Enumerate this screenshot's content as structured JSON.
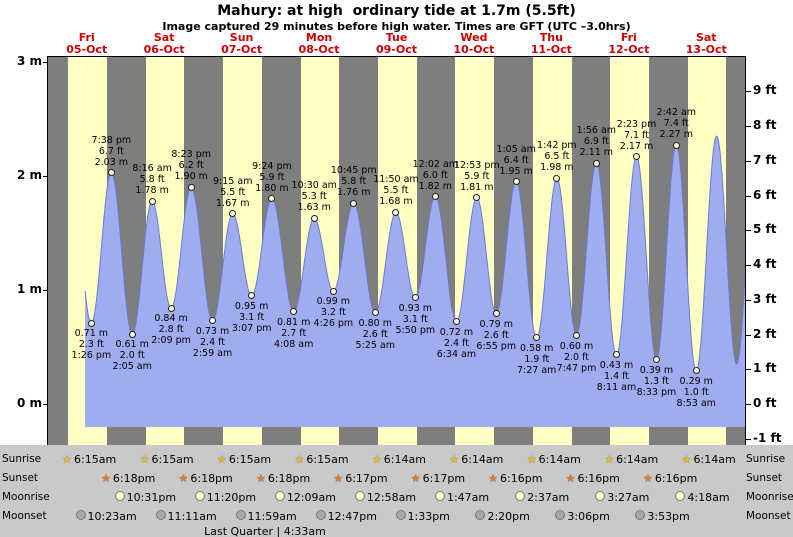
{
  "title": "Mahury: at high  ordinary tide at 1.7m (5.5ft)",
  "subtitle": "Image captured 29 minutes before high water. Times are GFT (UTC –3.0hrs)",
  "colors": {
    "day_band": "#ffffc4",
    "night_band": "#7e7e7e",
    "tide_fill": "#9fadf0",
    "tide_edge": "#6b7bd6",
    "date_red": "#cc0000",
    "footer_bg": "#c9c9c9",
    "sunrise_star": "#dfc02f",
    "sunset_star": "#e07b2a",
    "moonrise_moon": "#ffffd8",
    "moonset_moon": "#a8a8a8",
    "marker_fill": "#fffbe0"
  },
  "y_axis": {
    "left": [
      "3 m",
      "2 m",
      "1 m",
      "0 m"
    ],
    "right": [
      "9 ft",
      "8 ft",
      "7 ft",
      "6 ft",
      "5 ft",
      "4 ft",
      "3 ft",
      "2 ft",
      "1 ft",
      "0 ft",
      "-1 ft"
    ]
  },
  "days": [
    {
      "name": "Fri",
      "date": "05-Oct"
    },
    {
      "name": "Sat",
      "date": "06-Oct"
    },
    {
      "name": "Sun",
      "date": "07-Oct"
    },
    {
      "name": "Mon",
      "date": "08-Oct"
    },
    {
      "name": "Tue",
      "date": "09-Oct"
    },
    {
      "name": "Wed",
      "date": "10-Oct"
    },
    {
      "name": "Thu",
      "date": "11-Oct"
    },
    {
      "name": "Fri",
      "date": "12-Oct"
    },
    {
      "name": "Sat",
      "date": "13-Oct"
    }
  ],
  "chart_data": {
    "type": "area",
    "title": "Tide height over 9 days",
    "x_range_days": 9,
    "ylim_m": [
      -0.36,
      3.4
    ],
    "y_ticks_m": [
      0,
      1,
      2,
      3
    ],
    "y_ticks_ft": [
      -1,
      0,
      1,
      2,
      3,
      4,
      5,
      6,
      7,
      8,
      9
    ],
    "tide_events": [
      {
        "day": 0,
        "type": "low",
        "time": "1:26 pm",
        "m": "0.71",
        "ft": "2.3"
      },
      {
        "day": 0,
        "type": "high",
        "time": "7:38 pm",
        "m": "2.03",
        "ft": "6.7"
      },
      {
        "day": 1,
        "type": "low",
        "time": "2:05 am",
        "m": "0.61",
        "ft": "2.0"
      },
      {
        "day": 1,
        "type": "high",
        "time": "8:16 am",
        "m": "1.78",
        "ft": "5.8"
      },
      {
        "day": 1,
        "type": "low",
        "time": "2:09 pm",
        "m": "0.84",
        "ft": "2.8"
      },
      {
        "day": 1,
        "type": "high",
        "time": "8:23 pm",
        "m": "1.90",
        "ft": "6.2"
      },
      {
        "day": 2,
        "type": "low",
        "time": "2:59 am",
        "m": "0.73",
        "ft": "2.4"
      },
      {
        "day": 2,
        "type": "high",
        "time": "9:15 am",
        "m": "1.67",
        "ft": "5.5"
      },
      {
        "day": 2,
        "type": "low",
        "time": "3:07 pm",
        "m": "0.95",
        "ft": "3.1"
      },
      {
        "day": 2,
        "type": "high",
        "time": "9:24 pm",
        "m": "1.80",
        "ft": "5.9"
      },
      {
        "day": 3,
        "type": "low",
        "time": "4:08 am",
        "m": "0.81",
        "ft": "2.7"
      },
      {
        "day": 3,
        "type": "high",
        "time": "10:30 am",
        "m": "1.63",
        "ft": "5.3"
      },
      {
        "day": 3,
        "type": "low",
        "time": "4:26 pm",
        "m": "0.99",
        "ft": "3.2"
      },
      {
        "day": 3,
        "type": "high",
        "time": "10:45 pm",
        "m": "1.76",
        "ft": "5.8"
      },
      {
        "day": 4,
        "type": "low",
        "time": "5:25 am",
        "m": "0.80",
        "ft": "2.6"
      },
      {
        "day": 4,
        "type": "high",
        "time": "11:50 am",
        "m": "1.68",
        "ft": "5.5"
      },
      {
        "day": 4,
        "type": "low",
        "time": "5:50 pm",
        "m": "0.93",
        "ft": "3.1"
      },
      {
        "day": 5,
        "type": "high",
        "time": "12:02 am",
        "m": "1.82",
        "ft": "6.0"
      },
      {
        "day": 5,
        "type": "low",
        "time": "6:34 am",
        "m": "0.72",
        "ft": "2.4"
      },
      {
        "day": 5,
        "type": "high",
        "time": "12:53 pm",
        "m": "1.81",
        "ft": "5.9"
      },
      {
        "day": 5,
        "type": "low",
        "time": "6:55 pm",
        "m": "0.79",
        "ft": "2.6"
      },
      {
        "day": 6,
        "type": "high",
        "time": "1:05 am",
        "m": "1.95",
        "ft": "6.4"
      },
      {
        "day": 6,
        "type": "low",
        "time": "7:27 am",
        "m": "0.58",
        "ft": "1.9"
      },
      {
        "day": 6,
        "type": "high",
        "time": "1:42 pm",
        "m": "1.98",
        "ft": "6.5"
      },
      {
        "day": 6,
        "type": "low",
        "time": "7:47 pm",
        "m": "0.60",
        "ft": "2.0"
      },
      {
        "day": 7,
        "type": "high",
        "time": "1:56 am",
        "m": "2.11",
        "ft": "6.9"
      },
      {
        "day": 7,
        "type": "low",
        "time": "8:11 am",
        "m": "0.43",
        "ft": "1.4"
      },
      {
        "day": 7,
        "type": "high",
        "time": "2:23 pm",
        "m": "2.17",
        "ft": "7.1"
      },
      {
        "day": 7,
        "type": "low",
        "time": "8:33 pm",
        "m": "0.39",
        "ft": "1.3"
      },
      {
        "day": 8,
        "type": "high",
        "time": "2:42 am",
        "m": "2.27",
        "ft": "7.4"
      },
      {
        "day": 8,
        "type": "low",
        "time": "8:53 am",
        "m": "0.29",
        "ft": "1.0"
      }
    ]
  },
  "footer": {
    "rows": [
      {
        "id": "sunrise",
        "label": "Sunrise",
        "entries": [
          {
            "day": 0,
            "time": "6:15am"
          },
          {
            "day": 1,
            "time": "6:15am"
          },
          {
            "day": 2,
            "time": "6:15am"
          },
          {
            "day": 3,
            "time": "6:15am"
          },
          {
            "day": 4,
            "time": "6:14am"
          },
          {
            "day": 5,
            "time": "6:14am"
          },
          {
            "day": 6,
            "time": "6:14am"
          },
          {
            "day": 7,
            "time": "6:14am"
          },
          {
            "day": 8,
            "time": "6:14am"
          }
        ]
      },
      {
        "id": "sunset",
        "label": "Sunset",
        "entries": [
          {
            "day": 0,
            "time": "6:18pm"
          },
          {
            "day": 1,
            "time": "6:18pm"
          },
          {
            "day": 2,
            "time": "6:18pm"
          },
          {
            "day": 3,
            "time": "6:17pm"
          },
          {
            "day": 4,
            "time": "6:17pm"
          },
          {
            "day": 5,
            "time": "6:16pm"
          },
          {
            "day": 6,
            "time": "6:16pm"
          },
          {
            "day": 7,
            "time": "6:16pm"
          }
        ]
      },
      {
        "id": "moonrise",
        "label": "Moonrise",
        "entries": [
          {
            "day": 0,
            "time": "10:31pm"
          },
          {
            "day": 1,
            "time": "11:20pm"
          },
          {
            "day": 3,
            "time": "12:09am"
          },
          {
            "day": 4,
            "time": "12:58am"
          },
          {
            "day": 5,
            "time": "1:47am"
          },
          {
            "day": 6,
            "time": "2:37am"
          },
          {
            "day": 7,
            "time": "3:27am"
          },
          {
            "day": 8,
            "time": "4:18am"
          }
        ]
      },
      {
        "id": "moonset",
        "label": "Moonset",
        "entries": [
          {
            "day": 0,
            "time": "10:23am"
          },
          {
            "day": 1,
            "time": "11:11am"
          },
          {
            "day": 2,
            "time": "11:59am"
          },
          {
            "day": 3,
            "time": "12:47pm"
          },
          {
            "day": 4,
            "time": "1:33pm"
          },
          {
            "day": 5,
            "time": "2:20pm"
          },
          {
            "day": 6,
            "time": "3:06pm"
          },
          {
            "day": 7,
            "time": "3:53pm"
          }
        ]
      }
    ],
    "phase": "Last Quarter | 4:33am"
  }
}
